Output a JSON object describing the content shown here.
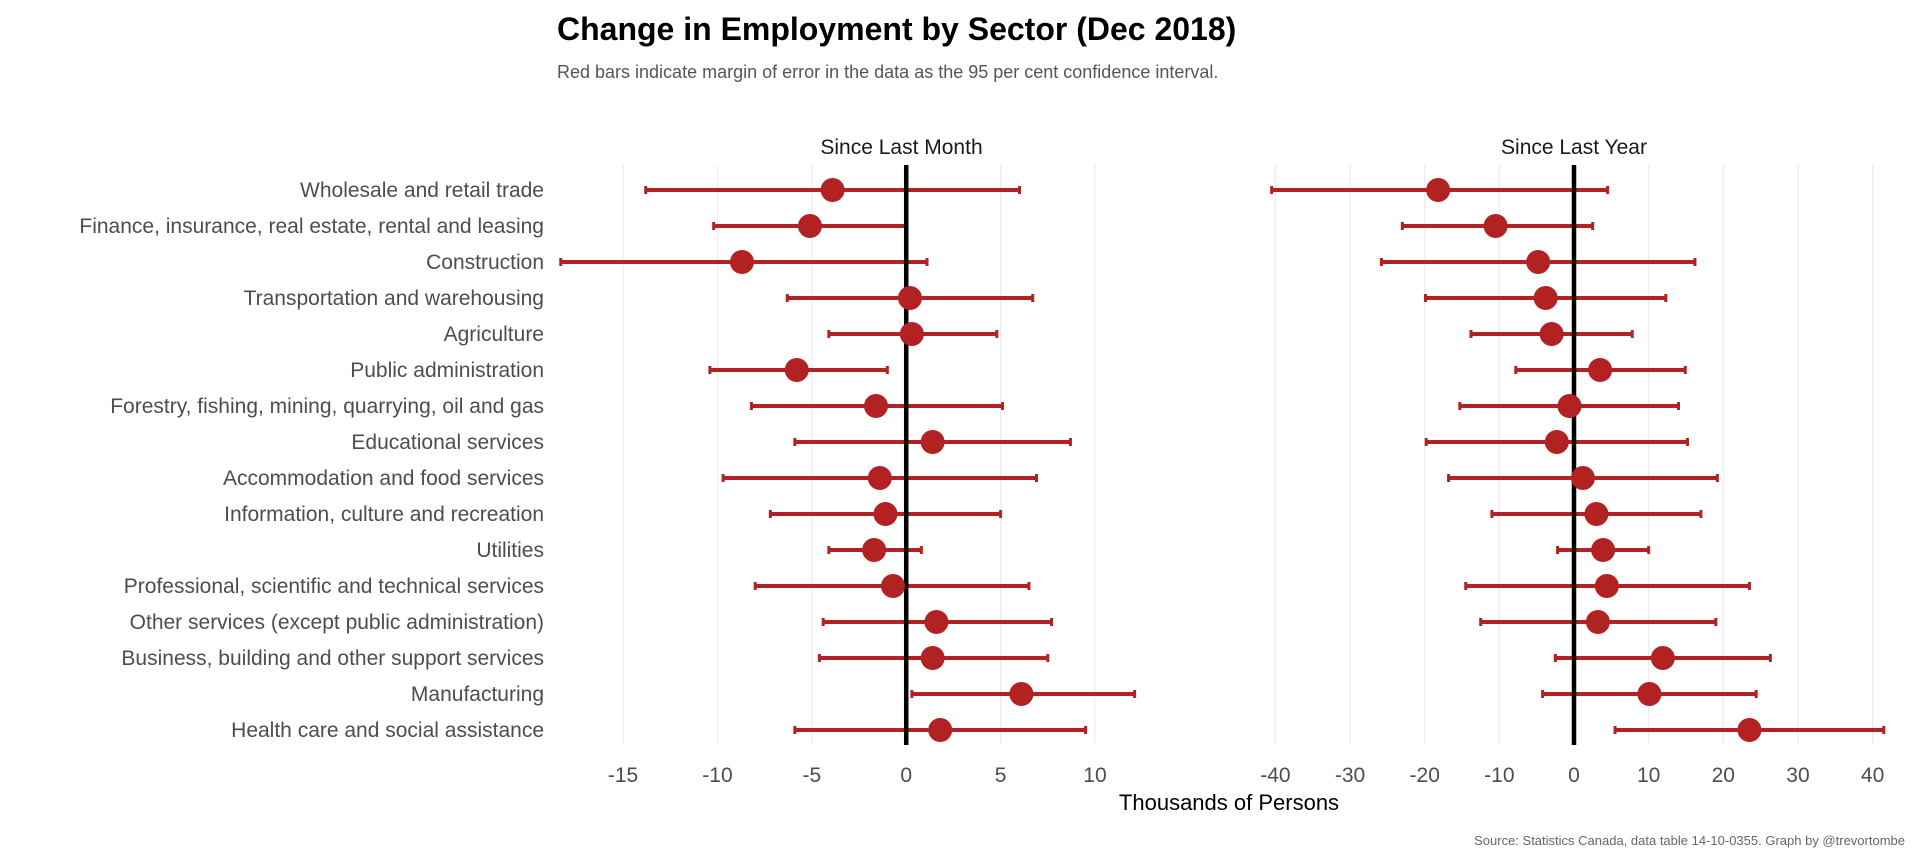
{
  "chart_data": {
    "type": "errorbar",
    "title": "Change in Employment by Sector (Dec 2018)",
    "subtitle": "Red bars indicate margin of error in the data as the 95 per cent confidence interval.",
    "xlabel": "Thousands of Persons",
    "caption": "Source: Statistics Canada, data table 14-10-0355. Graph by @trevortombe",
    "categories": [
      "Wholesale and retail trade",
      "Finance, insurance, real estate, rental and leasing",
      "Construction",
      "Transportation and warehousing",
      "Agriculture",
      "Public administration",
      "Forestry, fishing, mining, quarrying, oil and gas",
      "Educational services",
      "Accommodation and food services",
      "Information, culture and recreation",
      "Utilities",
      "Professional, scientific and technical services",
      "Other services (except public administration)",
      "Business, building and other support services",
      "Manufacturing",
      "Health care and social assistance"
    ],
    "colors": {
      "point": "#b22222",
      "bar": "#b22222",
      "zero_line": "#000000",
      "grid": "#ebebeb"
    },
    "grid": true,
    "panels": [
      {
        "name": "Since Last Month",
        "xlim": [
          -18.5,
          18
        ],
        "ticks": [
          -15,
          -10,
          -5,
          0,
          5,
          10
        ],
        "tick_labels": [
          "-15",
          "-10",
          "-5",
          "0",
          "5",
          "10"
        ],
        "points": [
          {
            "value": -3.9,
            "low": -13.8,
            "high": 6.0
          },
          {
            "value": -5.1,
            "low": -10.2,
            "high": 0.0
          },
          {
            "value": -8.7,
            "low": -18.3,
            "high": 1.1
          },
          {
            "value": 0.2,
            "low": -6.3,
            "high": 6.7
          },
          {
            "value": 0.3,
            "low": -4.1,
            "high": 4.8
          },
          {
            "value": -5.8,
            "low": -10.4,
            "high": -1.0
          },
          {
            "value": -1.6,
            "low": -8.2,
            "high": 5.1
          },
          {
            "value": 1.4,
            "low": -5.9,
            "high": 8.7
          },
          {
            "value": -1.4,
            "low": -9.7,
            "high": 6.9
          },
          {
            "value": -1.1,
            "low": -7.2,
            "high": 5.0
          },
          {
            "value": -1.7,
            "low": -4.1,
            "high": 0.8
          },
          {
            "value": -0.7,
            "low": -8.0,
            "high": 6.5
          },
          {
            "value": 1.6,
            "low": -4.4,
            "high": 7.7
          },
          {
            "value": 1.4,
            "low": -4.6,
            "high": 7.5
          },
          {
            "value": 6.1,
            "low": 0.3,
            "high": 12.1
          },
          {
            "value": 1.8,
            "low": -5.9,
            "high": 9.5
          }
        ]
      },
      {
        "name": "Since Last Year",
        "xlim": [
          -43,
          43
        ],
        "ticks": [
          -40,
          -30,
          -20,
          -10,
          0,
          10,
          20,
          30,
          40
        ],
        "tick_labels": [
          "-40",
          "-30",
          "-20",
          "-10",
          "0",
          "10",
          "20",
          "30",
          "40"
        ],
        "points": [
          {
            "value": -18.2,
            "low": -40.5,
            "high": 4.5
          },
          {
            "value": -10.5,
            "low": -23.0,
            "high": 2.5
          },
          {
            "value": -4.8,
            "low": -25.8,
            "high": 16.2
          },
          {
            "value": -3.8,
            "low": -19.9,
            "high": 12.3
          },
          {
            "value": -3.0,
            "low": -13.8,
            "high": 7.8
          },
          {
            "value": 3.5,
            "low": -7.8,
            "high": 14.9
          },
          {
            "value": -0.6,
            "low": -15.3,
            "high": 14.0
          },
          {
            "value": -2.3,
            "low": -19.8,
            "high": 15.2
          },
          {
            "value": 1.2,
            "low": -16.8,
            "high": 19.2
          },
          {
            "value": 3.0,
            "low": -11.0,
            "high": 17.0
          },
          {
            "value": 3.9,
            "low": -2.2,
            "high": 10.0
          },
          {
            "value": 4.4,
            "low": -14.5,
            "high": 23.5
          },
          {
            "value": 3.2,
            "low": -12.5,
            "high": 19.0
          },
          {
            "value": 11.9,
            "low": -2.5,
            "high": 26.3
          },
          {
            "value": 10.1,
            "low": -4.2,
            "high": 24.4
          },
          {
            "value": 23.5,
            "low": 5.5,
            "high": 41.5
          }
        ]
      }
    ]
  }
}
